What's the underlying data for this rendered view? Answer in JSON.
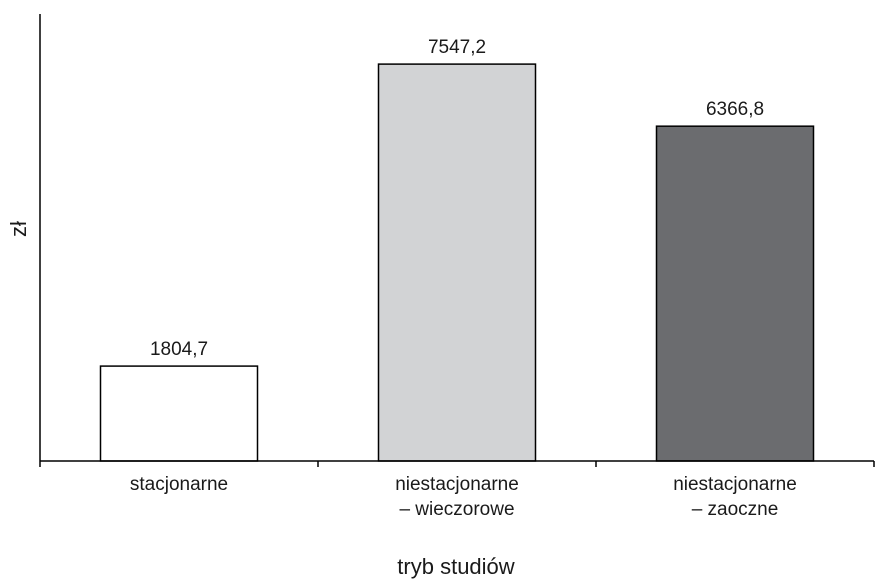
{
  "chart_data": {
    "type": "bar",
    "categories": [
      [
        "stacjonarne"
      ],
      [
        "niestacjonarne",
        "– wieczorowe"
      ],
      [
        "niestacjonarne",
        "– zaoczne"
      ]
    ],
    "values": [
      1804.7,
      7547.2,
      6366.8
    ],
    "value_labels": [
      "1804,7",
      "7547,2",
      "6366,8"
    ],
    "bar_colors": [
      "#ffffff",
      "#d2d3d5",
      "#6b6c6f"
    ],
    "xlabel": "tryb studiów",
    "ylabel": "zł",
    "ylim": [
      0,
      8500
    ],
    "grid": false,
    "legend": "none"
  }
}
